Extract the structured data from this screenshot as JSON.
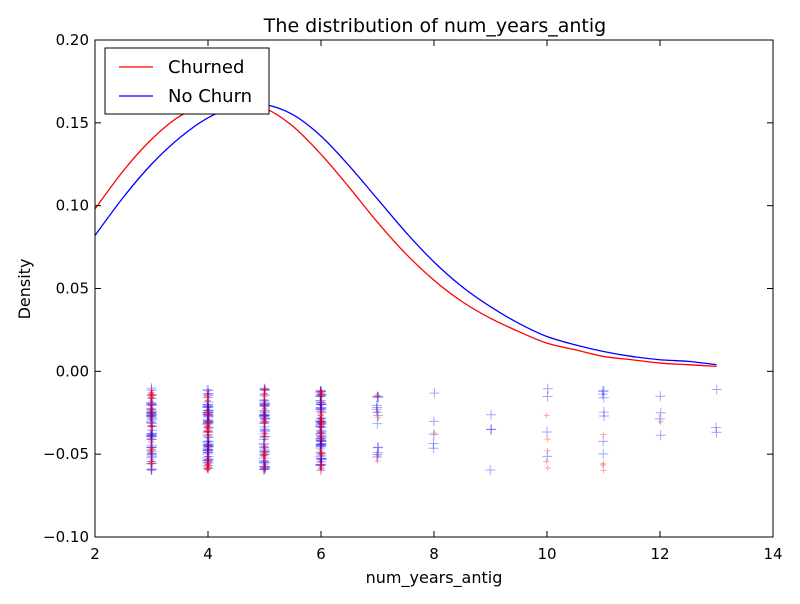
{
  "chart_data": {
    "type": "line",
    "title": "The distribution of num_years_antig",
    "xlabel": "num_years_antig",
    "ylabel": "Density",
    "xlim": [
      2,
      14
    ],
    "ylim": [
      -0.1,
      0.2
    ],
    "xticks": [
      2,
      4,
      6,
      8,
      10,
      12,
      14
    ],
    "xtick_labels": [
      "2",
      "4",
      "6",
      "8",
      "10",
      "12",
      "14"
    ],
    "yticks": [
      -0.1,
      -0.05,
      0.0,
      0.05,
      0.1,
      0.15,
      0.2
    ],
    "ytick_labels": [
      "−0.10",
      "−0.05",
      "0.00",
      "0.05",
      "0.10",
      "0.15",
      "0.20"
    ],
    "grid": false,
    "legend_position": "top-left",
    "series": [
      {
        "name": "Churned",
        "color": "#ff0000",
        "x": [
          2.0,
          2.5,
          3.0,
          3.5,
          4.0,
          4.5,
          5.0,
          5.5,
          6.0,
          6.5,
          7.0,
          7.5,
          8.0,
          8.5,
          9.0,
          9.5,
          10.0,
          10.5,
          11.0,
          11.5,
          12.0,
          12.5,
          13.0
        ],
        "y": [
          0.098,
          0.121,
          0.14,
          0.154,
          0.161,
          0.163,
          0.159,
          0.148,
          0.131,
          0.111,
          0.09,
          0.071,
          0.055,
          0.042,
          0.032,
          0.024,
          0.017,
          0.013,
          0.009,
          0.007,
          0.005,
          0.004,
          0.003
        ]
      },
      {
        "name": "No Churn",
        "color": "#0000ff",
        "x": [
          2.0,
          2.5,
          3.0,
          3.5,
          4.0,
          4.5,
          5.0,
          5.5,
          6.0,
          6.5,
          7.0,
          7.5,
          8.0,
          8.5,
          9.0,
          9.5,
          10.0,
          10.5,
          11.0,
          11.5,
          12.0,
          12.5,
          13.0
        ],
        "y": [
          0.082,
          0.105,
          0.125,
          0.141,
          0.153,
          0.16,
          0.161,
          0.155,
          0.142,
          0.124,
          0.104,
          0.084,
          0.066,
          0.051,
          0.039,
          0.029,
          0.021,
          0.016,
          0.012,
          0.009,
          0.007,
          0.006,
          0.004
        ]
      }
    ],
    "rug": {
      "y_range": [
        -0.06,
        -0.01
      ],
      "churned": {
        "marker": "+",
        "color": "#ff0000",
        "points_per_x": [
          {
            "x": 3,
            "count": 45
          },
          {
            "x": 4,
            "count": 55
          },
          {
            "x": 5,
            "count": 45
          },
          {
            "x": 6,
            "count": 55
          },
          {
            "x": 7,
            "count": 6
          },
          {
            "x": 8,
            "count": 1
          },
          {
            "x": 10,
            "count": 5
          },
          {
            "x": 11,
            "count": 4
          },
          {
            "x": 12,
            "count": 1
          }
        ]
      },
      "no_churn": {
        "marker": "+",
        "color": "#0000ff",
        "points_per_x": [
          {
            "x": 3,
            "count": 60
          },
          {
            "x": 4,
            "count": 75
          },
          {
            "x": 5,
            "count": 60
          },
          {
            "x": 6,
            "count": 75
          },
          {
            "x": 7,
            "count": 14
          },
          {
            "x": 8,
            "count": 5
          },
          {
            "x": 9,
            "count": 4
          },
          {
            "x": 10,
            "count": 4
          },
          {
            "x": 11,
            "count": 8
          },
          {
            "x": 12,
            "count": 4
          },
          {
            "x": 13,
            "count": 3
          }
        ]
      }
    }
  }
}
